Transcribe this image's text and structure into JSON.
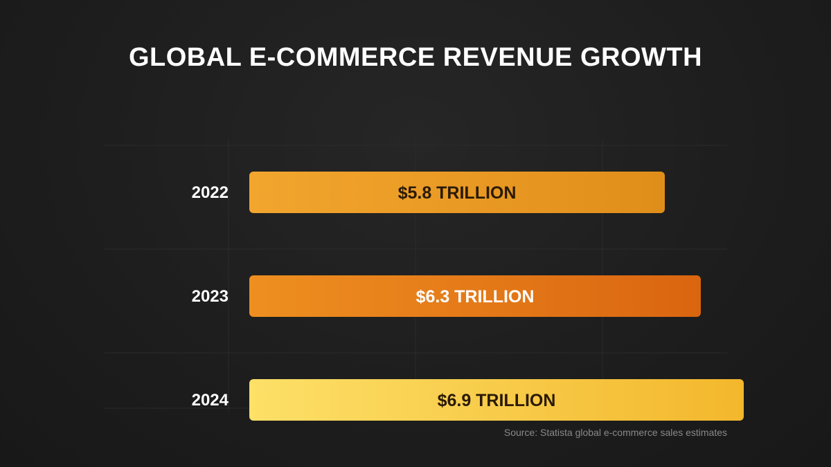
{
  "colors": {
    "background": "#1d1d1d",
    "grid": "#2b2b2b",
    "text": "#ffffff",
    "source_text": "#8a8a8a"
  },
  "chart_data": {
    "type": "bar",
    "orientation": "horizontal",
    "title": "GLOBAL E-COMMERCE REVENUE GROWTH",
    "categories": [
      "2022",
      "2023",
      "2024"
    ],
    "values": [
      5.8,
      6.3,
      6.9
    ],
    "unit": "trillion USD",
    "data_labels": [
      "$5.8 TRILLION",
      "$6.3 TRILLION",
      "$6.9 TRILLION"
    ],
    "bar_gradients": [
      [
        "#f2a62e",
        "#e08e1a"
      ],
      [
        "#ee8f20",
        "#da6510"
      ],
      [
        "#fde068",
        "#f3b72c"
      ]
    ],
    "label_colors": [
      "#2a1a05",
      "#ffffff",
      "#2a1a05"
    ],
    "xlim": [
      0,
      6.9
    ],
    "grid": true,
    "source": "Source: Statista global e-commerce sales estimates"
  }
}
